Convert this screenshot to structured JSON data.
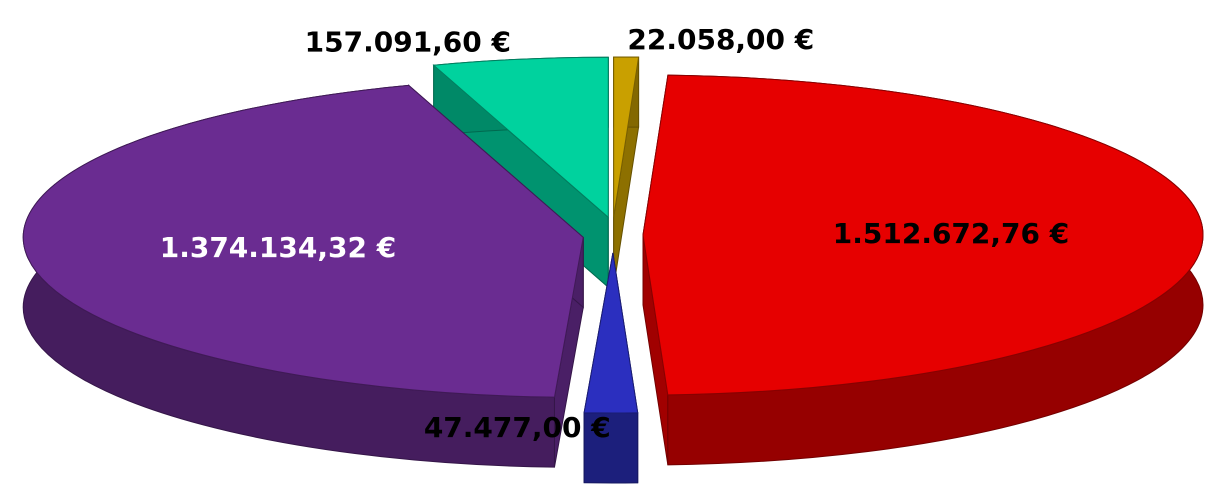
{
  "chart_data": {
    "type": "pie",
    "values": [
      22058.0,
      1512672.76,
      47477.0,
      1374134.32,
      157091.6
    ],
    "value_labels": [
      "22.058,00 €",
      "1.512.672,76 €",
      "47.477,00 €",
      "1.374.134,32 €",
      "157.091,60 €"
    ],
    "colors": [
      "#c9a000",
      "#e60000",
      "#2b2fbf",
      "#6a2c91",
      "#00d29e"
    ],
    "label_colors": [
      "#000000",
      "#000000",
      "#ffffff",
      "#ffffff",
      "#000000"
    ],
    "start_angle": 0,
    "direction": "clockwise",
    "three_d": true,
    "exploded": true
  }
}
